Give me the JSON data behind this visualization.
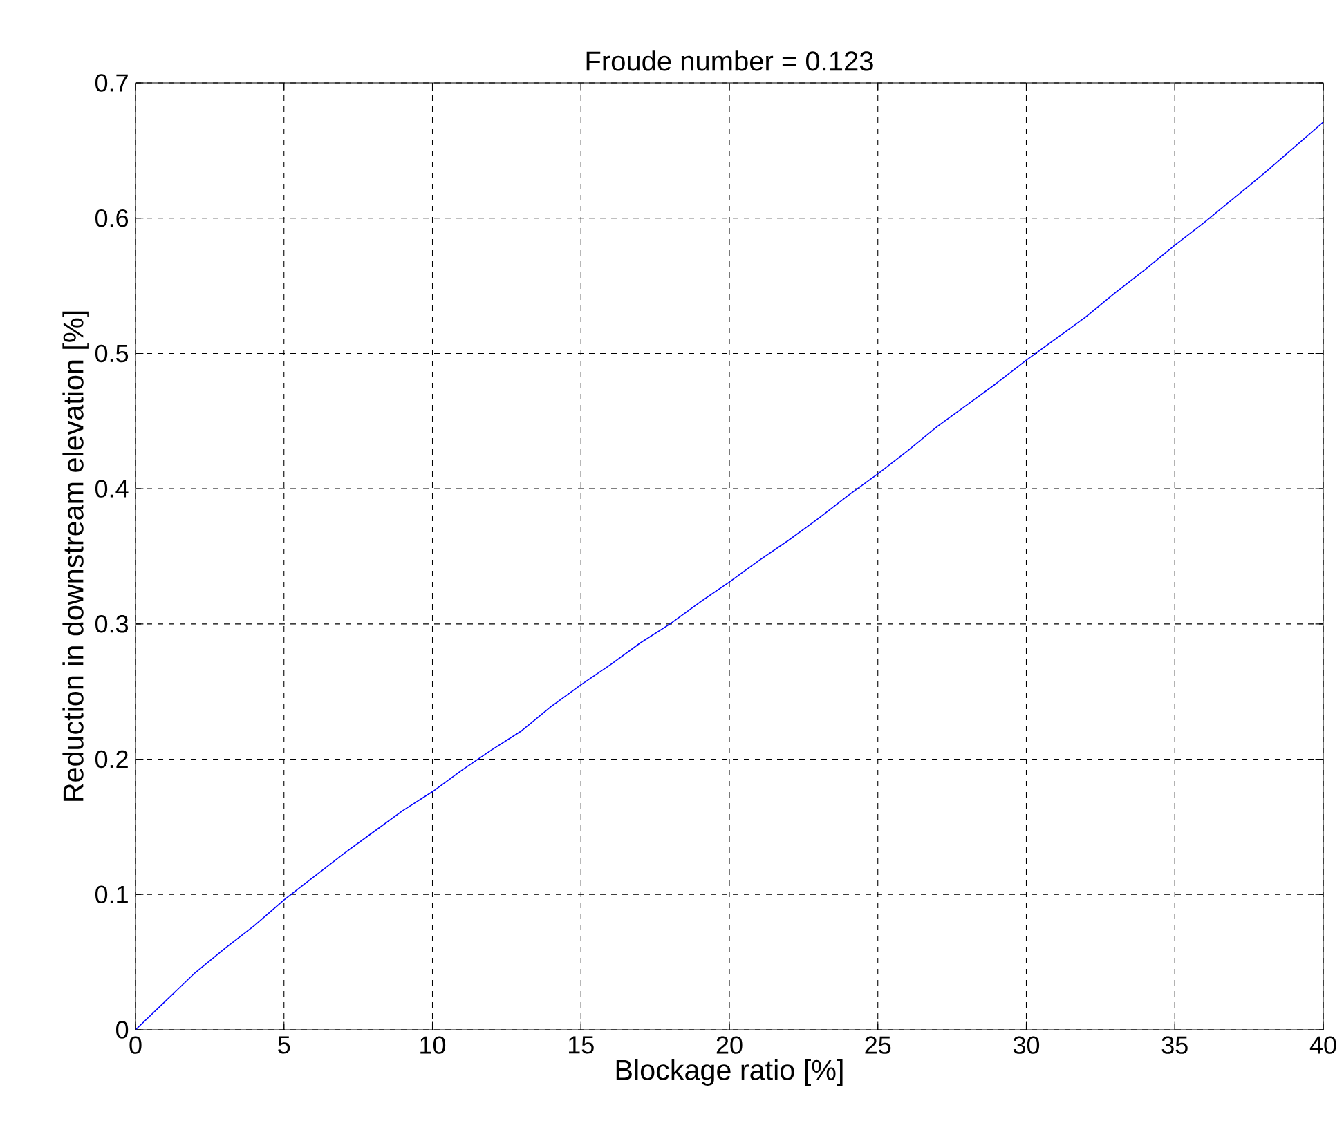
{
  "chart_data": {
    "type": "line",
    "title": "Froude number = 0.123",
    "xlabel": "Blockage ratio [%]",
    "ylabel": "Reduction in downstream elevation [%]",
    "xlim": [
      0,
      40
    ],
    "ylim": [
      0,
      0.7
    ],
    "xticks": [
      0,
      5,
      10,
      15,
      20,
      25,
      30,
      35,
      40
    ],
    "yticks": [
      0,
      0.1,
      0.2,
      0.3,
      0.4,
      0.5,
      0.6,
      0.7
    ],
    "grid": true,
    "series": [
      {
        "color": "#0000ff",
        "x": [
          0,
          1,
          2,
          3,
          4,
          5,
          6,
          7,
          8,
          9,
          10,
          11,
          12,
          13,
          14,
          15,
          16,
          17,
          18,
          19,
          20,
          21,
          22,
          23,
          24,
          25,
          26,
          27,
          28,
          29,
          30,
          31,
          32,
          33,
          34,
          35,
          36,
          37,
          38,
          39,
          40
        ],
        "values": [
          0,
          0.021,
          0.042,
          0.06,
          0.077,
          0.096,
          0.113,
          0.13,
          0.146,
          0.162,
          0.176,
          0.192,
          0.207,
          0.221,
          0.239,
          0.255,
          0.27,
          0.286,
          0.3,
          0.316,
          0.331,
          0.347,
          0.362,
          0.378,
          0.395,
          0.411,
          0.428,
          0.446,
          0.462,
          0.478,
          0.495,
          0.511,
          0.527,
          0.545,
          0.562,
          0.58,
          0.597,
          0.615,
          0.633,
          0.652,
          0.671
        ]
      }
    ]
  }
}
